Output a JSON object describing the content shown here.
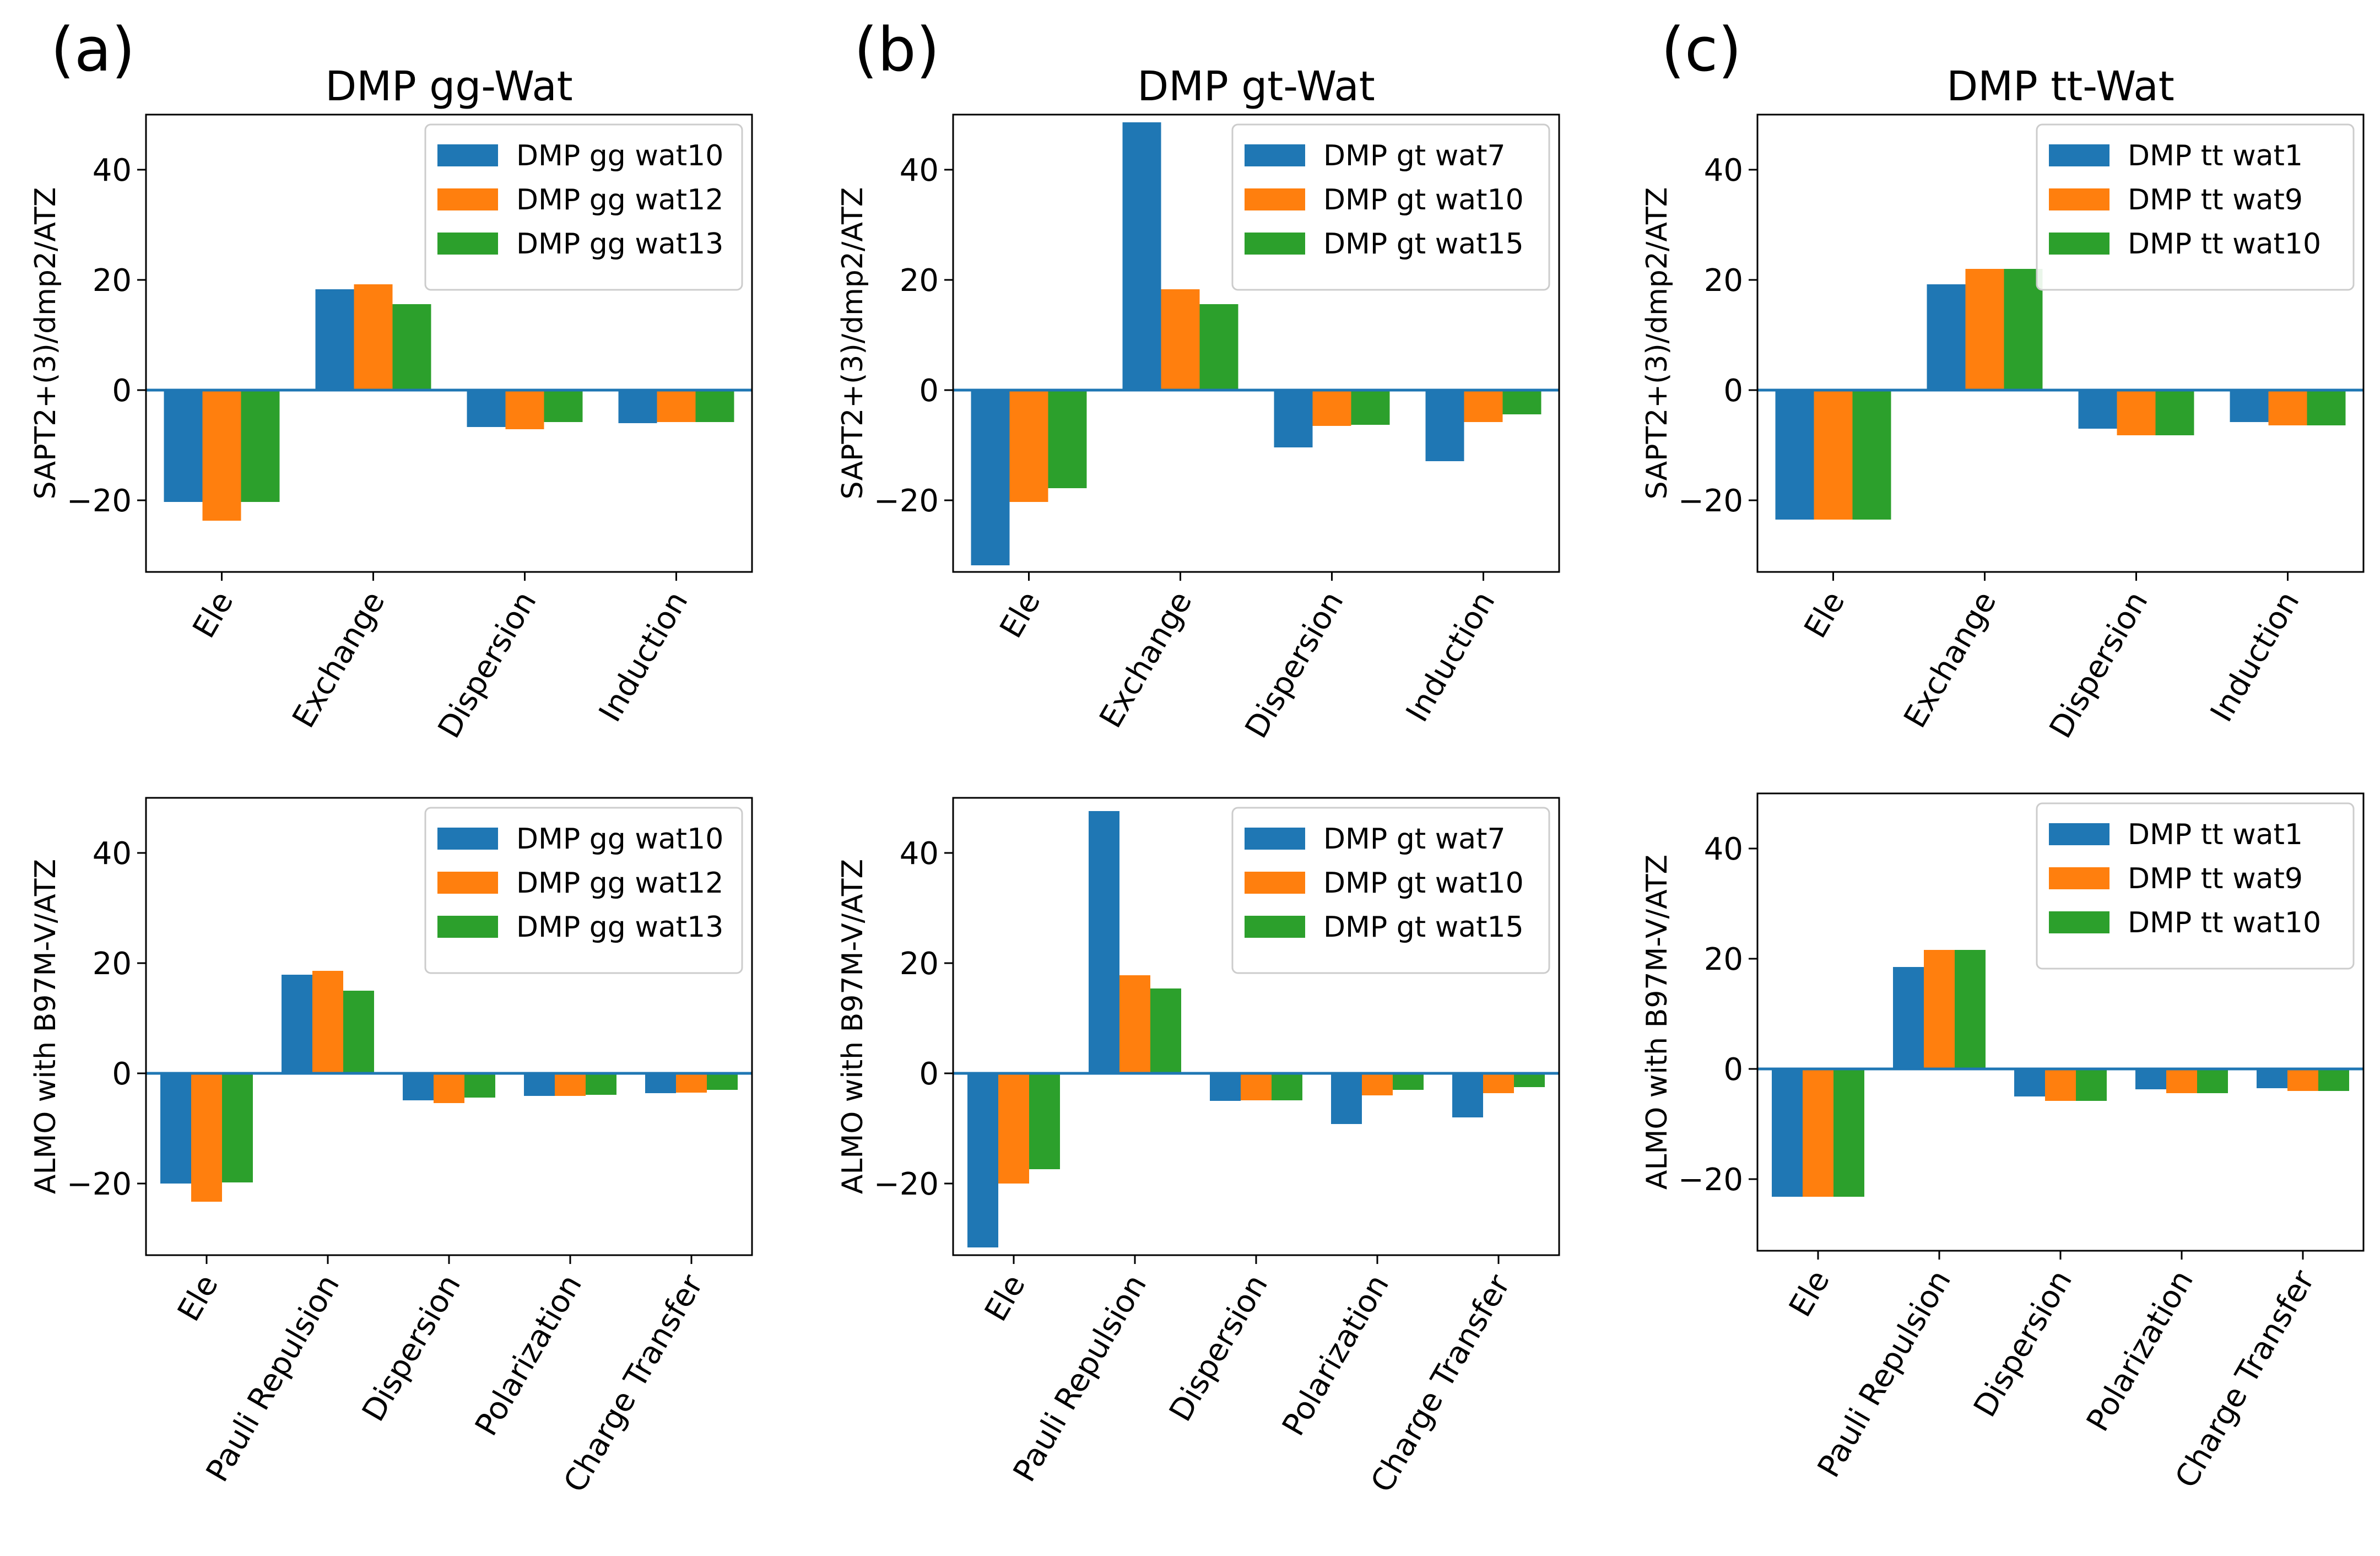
{
  "colors": {
    "s0": "#1f77b4",
    "s1": "#ff7f0e",
    "s2": "#2ca02c",
    "zero_line": "#1f77b4"
  },
  "panels": [
    {
      "label": "(a)",
      "title": "DMP gg-Wat"
    },
    {
      "label": "(b)",
      "title": "DMP gt-Wat"
    },
    {
      "label": "(c)",
      "title": "DMP tt-Wat"
    }
  ],
  "chart_data": [
    {
      "type": "bar",
      "panel": "(a)",
      "title": "DMP gg-Wat",
      "ylabel": "SAPT2+(3)/dmp2/ATZ",
      "ylim": [
        -33,
        50
      ],
      "yticks": [
        -20,
        0,
        20,
        40
      ],
      "categories": [
        "Ele",
        "Exchange",
        "Dispersion",
        "Induction"
      ],
      "series": [
        {
          "name": "DMP gg wat10",
          "values": [
            -20.3,
            18.3,
            -6.7,
            -6.0
          ]
        },
        {
          "name": "DMP gg wat12",
          "values": [
            -23.7,
            19.2,
            -7.1,
            -5.8
          ]
        },
        {
          "name": "DMP gg wat13",
          "values": [
            -20.3,
            15.6,
            -5.8,
            -5.8
          ]
        }
      ],
      "legend": "top-right"
    },
    {
      "type": "bar",
      "panel": "(b)",
      "title": "DMP gt-Wat",
      "ylabel": "SAPT2+(3)/dmp2/ATZ",
      "ylim": [
        -33,
        50
      ],
      "yticks": [
        -20,
        0,
        20,
        40
      ],
      "categories": [
        "Ele",
        "Exchange",
        "Dispersion",
        "Induction"
      ],
      "series": [
        {
          "name": "DMP gt wat7",
          "values": [
            -31.8,
            48.6,
            -10.4,
            -12.9
          ]
        },
        {
          "name": "DMP gt wat10",
          "values": [
            -20.3,
            18.3,
            -6.5,
            -5.8
          ]
        },
        {
          "name": "DMP gt wat15",
          "values": [
            -17.8,
            15.6,
            -6.3,
            -4.4
          ]
        }
      ],
      "legend": "top-right"
    },
    {
      "type": "bar",
      "panel": "(c)",
      "title": "DMP tt-Wat",
      "ylabel": "SAPT2+(3)/dmp2/ATZ",
      "ylim": [
        -33,
        50
      ],
      "yticks": [
        -20,
        0,
        20,
        40
      ],
      "categories": [
        "Ele",
        "Exchange",
        "Dispersion",
        "Induction"
      ],
      "series": [
        {
          "name": "DMP tt wat1",
          "values": [
            -23.5,
            19.2,
            -7.0,
            -5.8
          ]
        },
        {
          "name": "DMP tt wat9",
          "values": [
            -23.5,
            22.0,
            -8.2,
            -6.4
          ]
        },
        {
          "name": "DMP tt wat10",
          "values": [
            -23.5,
            22.0,
            -8.2,
            -6.4
          ]
        }
      ],
      "legend": "top-right"
    },
    {
      "type": "bar",
      "panel": "(a)",
      "title": "",
      "ylabel": "ALMO with B97M-V/ATZ",
      "ylim": [
        -33,
        50
      ],
      "yticks": [
        -20,
        0,
        20,
        40
      ],
      "categories": [
        "Ele",
        "Pauli Repulsion",
        "Dispersion",
        "Polarization",
        "Charge Transfer"
      ],
      "series": [
        {
          "name": "DMP gg wat10",
          "values": [
            -20.0,
            17.9,
            -4.9,
            -4.1,
            -3.6
          ]
        },
        {
          "name": "DMP gg wat12",
          "values": [
            -23.3,
            18.6,
            -5.4,
            -4.1,
            -3.5
          ]
        },
        {
          "name": "DMP gg wat13",
          "values": [
            -19.8,
            15.0,
            -4.4,
            -3.9,
            -3.0
          ]
        }
      ],
      "legend": "top-right"
    },
    {
      "type": "bar",
      "panel": "(b)",
      "title": "",
      "ylabel": "ALMO with B97M-V/ATZ",
      "ylim": [
        -33,
        50
      ],
      "yticks": [
        -20,
        0,
        20,
        40
      ],
      "categories": [
        "Ele",
        "Pauli Repulsion",
        "Dispersion",
        "Polarization",
        "Charge Transfer"
      ],
      "series": [
        {
          "name": "DMP gt wat7",
          "values": [
            -31.6,
            47.6,
            -5.0,
            -9.2,
            -8.0
          ]
        },
        {
          "name": "DMP gt wat10",
          "values": [
            -20.0,
            17.8,
            -4.9,
            -4.0,
            -3.6
          ]
        },
        {
          "name": "DMP gt wat15",
          "values": [
            -17.4,
            15.4,
            -4.9,
            -3.0,
            -2.5
          ]
        }
      ],
      "legend": "top-right"
    },
    {
      "type": "bar",
      "panel": "(c)",
      "title": "",
      "ylabel": "ALMO with B97M-V/ATZ",
      "ylim": [
        -33,
        50
      ],
      "yticks": [
        -20,
        0,
        20,
        40
      ],
      "categories": [
        "Ele",
        "Pauli Repulsion",
        "Dispersion",
        "Polarization",
        "Charge Transfer"
      ],
      "series": [
        {
          "name": "DMP tt wat1",
          "values": [
            -23.2,
            18.5,
            -5.0,
            -3.7,
            -3.5
          ]
        },
        {
          "name": "DMP tt wat9",
          "values": [
            -23.2,
            21.6,
            -5.8,
            -4.4,
            -4.0
          ]
        },
        {
          "name": "DMP tt wat10",
          "values": [
            -23.2,
            21.6,
            -5.8,
            -4.4,
            -4.0
          ]
        }
      ],
      "legend": "top-right"
    }
  ]
}
